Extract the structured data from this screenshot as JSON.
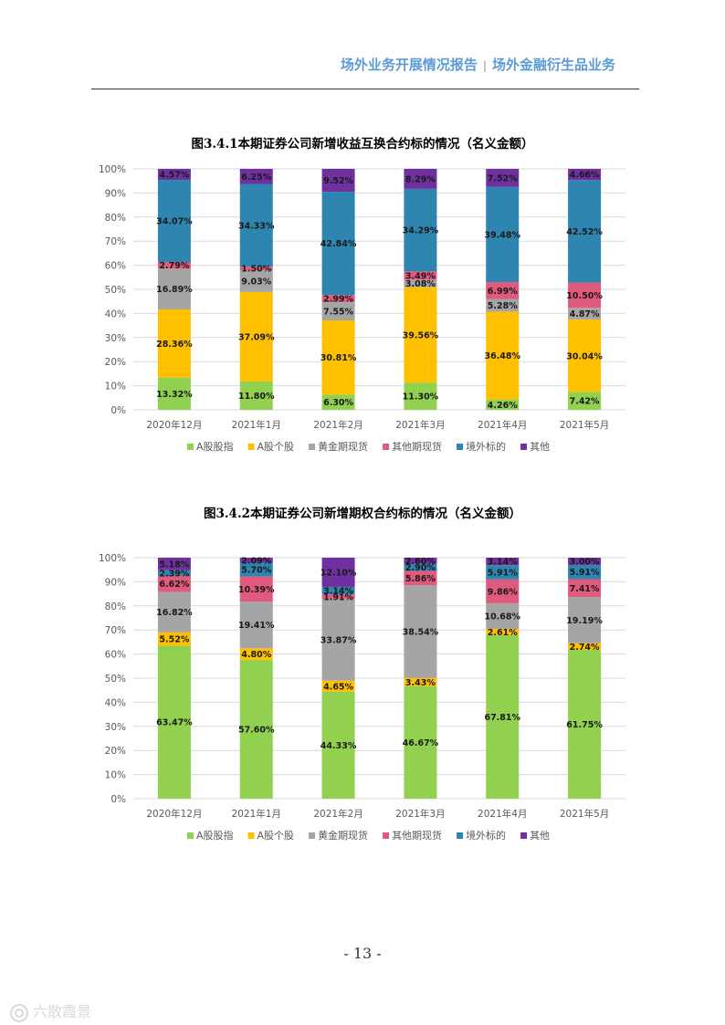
{
  "header": {
    "left": "场外业务开展情况报告",
    "separator": "|",
    "right": "场外金融衍生品业务"
  },
  "page_number": "- 13 -",
  "watermark": "六散霞景",
  "colors": {
    "A股股指": "#92d050",
    "A股个股": "#ffc000",
    "黄金期现货": "#a5a5a5",
    "其他期现货": "#e05a7e",
    "境外标的": "#2e86b0",
    "其他": "#7030a0",
    "header": "#5b9bd5"
  },
  "chart_data": [
    {
      "type": "bar",
      "stacked": "percent",
      "title": "图3.4.1本期证券公司新增收益互换合约标的情况（名义金额）",
      "categories": [
        "2020年12月",
        "2021年1月",
        "2021年2月",
        "2021年3月",
        "2021年4月",
        "2021年5月"
      ],
      "ytick_labels": [
        "0%",
        "10%",
        "20%",
        "30%",
        "40%",
        "50%",
        "60%",
        "70%",
        "80%",
        "90%",
        "100%"
      ],
      "ylim": [
        0,
        100
      ],
      "legend_position": "bottom",
      "series": [
        {
          "name": "A股股指",
          "values": [
            13.32,
            11.8,
            6.3,
            11.3,
            4.26,
            7.42
          ],
          "labels": [
            "13.32%",
            "11.80%",
            "6.30%",
            "11.30%",
            "4.26%",
            "7.42%"
          ]
        },
        {
          "name": "A股个股",
          "values": [
            28.36,
            37.09,
            30.81,
            39.56,
            36.48,
            30.04
          ],
          "labels": [
            "28.36%",
            "37.09%",
            "30.81%",
            "39.56%",
            "36.48%",
            "30.04%"
          ]
        },
        {
          "name": "黄金期现货",
          "values": [
            16.89,
            9.03,
            7.55,
            3.08,
            5.28,
            4.87
          ],
          "labels": [
            "16.89%",
            "9.03%",
            "7.55%",
            "3.08%",
            "5.28%",
            "4.87%"
          ]
        },
        {
          "name": "其他期现货",
          "values": [
            2.79,
            1.5,
            2.99,
            3.49,
            6.99,
            10.5
          ],
          "labels": [
            "2.79%",
            "1.50%",
            "2.99%",
            "3.49%",
            "6.99%",
            "10.50%"
          ]
        },
        {
          "name": "境外标的",
          "values": [
            34.07,
            34.33,
            42.84,
            34.29,
            39.48,
            42.52
          ],
          "labels": [
            "34.07%",
            "34.33%",
            "42.84%",
            "34.29%",
            "39.48%",
            "42.52%"
          ]
        },
        {
          "name": "其他",
          "values": [
            4.57,
            6.25,
            9.52,
            8.29,
            7.52,
            4.66
          ],
          "labels": [
            "4.57%",
            "6.25%",
            "9.52%",
            "8.29%",
            "7.52%",
            "4.66%"
          ]
        }
      ]
    },
    {
      "type": "bar",
      "stacked": "percent",
      "title": "图3.4.2本期证券公司新增期权合约标的情况（名义金额）",
      "categories": [
        "2020年12月",
        "2021年1月",
        "2021年2月",
        "2021年3月",
        "2021年4月",
        "2021年5月"
      ],
      "ytick_labels": [
        "0%",
        "10%",
        "20%",
        "30%",
        "40%",
        "50%",
        "60%",
        "70%",
        "80%",
        "90%",
        "100%"
      ],
      "ylim": [
        0,
        100
      ],
      "legend_position": "bottom",
      "series": [
        {
          "name": "A股股指",
          "values": [
            63.47,
            57.6,
            44.33,
            46.67,
            67.81,
            61.75
          ],
          "labels": [
            "63.47%",
            "57.60%",
            "44.33%",
            "46.67%",
            "67.81%",
            "61.75%"
          ]
        },
        {
          "name": "A股个股",
          "values": [
            5.52,
            4.8,
            4.65,
            3.43,
            2.61,
            2.74
          ],
          "labels": [
            "5.52%",
            "4.80%",
            "4.65%",
            "3.43%",
            "2.61%",
            "2.74%"
          ]
        },
        {
          "name": "黄金期现货",
          "values": [
            16.82,
            19.41,
            33.87,
            38.54,
            10.68,
            19.19
          ],
          "labels": [
            "16.82%",
            "19.41%",
            "33.87%",
            "38.54%",
            "10.68%",
            "19.19%"
          ]
        },
        {
          "name": "其他期现货",
          "values": [
            6.62,
            10.39,
            1.91,
            5.86,
            9.86,
            7.41
          ],
          "labels": [
            "6.62%",
            "10.39%",
            "1.91%",
            "5.86%",
            "9.86%",
            "7.41%"
          ]
        },
        {
          "name": "境外标的",
          "values": [
            2.39,
            5.7,
            3.14,
            2.9,
            5.91,
            5.91
          ],
          "labels": [
            "2.39%",
            "5.70%",
            "3.14%",
            "2.90%",
            "5.91%",
            "5.91%"
          ]
        },
        {
          "name": "其他",
          "values": [
            5.18,
            2.09,
            12.1,
            2.6,
            3.14,
            3.0
          ],
          "labels": [
            "5.18%",
            "2.09%",
            "12.10%",
            "2.60%",
            "3.14%",
            "3.00%"
          ]
        }
      ]
    }
  ]
}
